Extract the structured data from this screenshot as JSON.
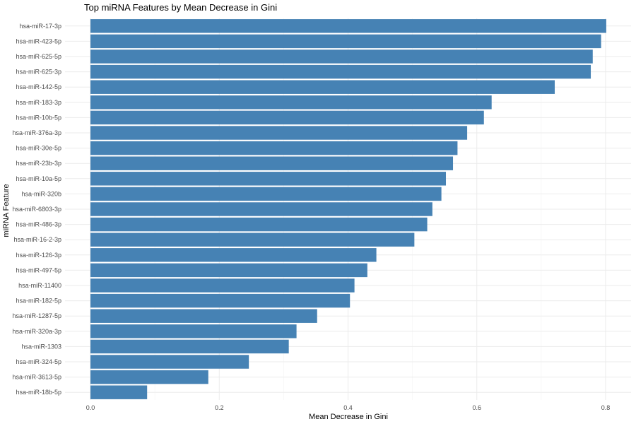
{
  "chart_data": {
    "type": "bar",
    "orientation": "horizontal",
    "title": "Top miRNA Features by Mean Decrease in Gini",
    "xlabel": "Mean Decrease in Gini",
    "ylabel": "miRNA Feature",
    "xlim": [
      0,
      0.8
    ],
    "x_ticks": [
      "0.0",
      "0.2",
      "0.4",
      "0.6",
      "0.8"
    ],
    "bar_color": "#4682b4",
    "grid": true,
    "legend": "none",
    "categories": [
      "hsa-miR-17-3p",
      "hsa-miR-423-5p",
      "hsa-miR-625-5p",
      "hsa-miR-625-3p",
      "hsa-miR-142-5p",
      "hsa-miR-183-3p",
      "hsa-miR-10b-5p",
      "hsa-miR-376a-3p",
      "hsa-miR-30e-5p",
      "hsa-miR-23b-3p",
      "hsa-miR-10a-5p",
      "hsa-miR-320b",
      "hsa-miR-6803-3p",
      "hsa-miR-486-3p",
      "hsa-miR-16-2-3p",
      "hsa-miR-126-3p",
      "hsa-miR-497-5p",
      "hsa-miR-11400",
      "hsa-miR-182-5p",
      "hsa-miR-1287-5p",
      "hsa-miR-320a-3p",
      "hsa-miR-1303",
      "hsa-miR-324-5p",
      "hsa-miR-3613-5p",
      "hsa-miR-18b-5p"
    ],
    "values": [
      0.801,
      0.793,
      0.78,
      0.777,
      0.721,
      0.623,
      0.611,
      0.585,
      0.57,
      0.563,
      0.552,
      0.545,
      0.531,
      0.523,
      0.503,
      0.444,
      0.43,
      0.41,
      0.403,
      0.352,
      0.32,
      0.308,
      0.246,
      0.183,
      0.088
    ]
  }
}
